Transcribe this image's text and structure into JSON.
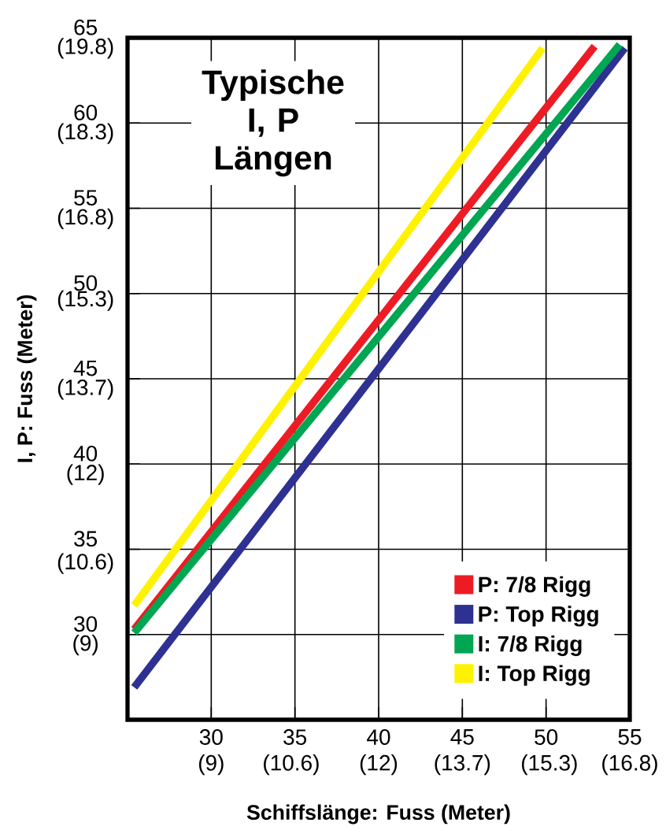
{
  "chart_data": {
    "type": "line",
    "title": "Typische I, P Längen",
    "xlabel": "Schiffslänge: Fuss (Meter)",
    "ylabel": "I, P: Fuss (Meter)",
    "xlim": [
      25,
      55
    ],
    "ylim": [
      25,
      65
    ],
    "xticks": [
      30,
      35,
      40,
      45,
      50,
      55
    ],
    "yticks": [
      30,
      35,
      40,
      45,
      50,
      55,
      60,
      65
    ],
    "x2lim": [
      7.62,
      16.764
    ],
    "x2ticks": [
      {
        "value": 9.144,
        "label": "(9)"
      },
      {
        "value": 10.6,
        "label": "(10.6)"
      },
      {
        "value": 12.192,
        "label": "(12)"
      },
      {
        "value": 13.716,
        "label": "(13.7)"
      },
      {
        "value": 15.3,
        "label": "(15.3)"
      },
      {
        "value": 16.764,
        "label": "(16.8)"
      }
    ],
    "y2lim": [
      7.62,
      19.812
    ],
    "y2ticks": [
      {
        "value": 9.144,
        "label": "(9)"
      },
      {
        "value": 10.6,
        "label": "(10.6)"
      },
      {
        "value": 12.192,
        "label": "(12)"
      },
      {
        "value": 13.716,
        "label": "(13.7)"
      },
      {
        "value": 15.3,
        "label": "(15.3)"
      },
      {
        "value": 16.764,
        "label": "(16.8)"
      },
      {
        "value": 18.288,
        "label": "(18.3)"
      },
      {
        "value": 19.812,
        "label": "(19.8)"
      }
    ],
    "grid": true,
    "legend": "bottom right",
    "marker": "none",
    "line_style": "solid",
    "series": [
      {
        "name": "P:  7/8 Rigg",
        "color": "#ed1c24",
        "x": [
          25.4,
          52.9
        ],
        "values": [
          30.3,
          64.5
        ]
      },
      {
        "name": "P:  Top Rigg",
        "color": "#2e3192",
        "x": [
          25.4,
          54.7
        ],
        "values": [
          26.9,
          64.4
        ]
      },
      {
        "name": "I:   7/8 Rigg",
        "color": "#00a651",
        "x": [
          25.4,
          54.4
        ],
        "values": [
          30.1,
          64.6
        ]
      },
      {
        "name": "I:   Top Rigg",
        "color": "#fff200",
        "x": [
          25.4,
          49.8
        ],
        "values": [
          31.7,
          64.4
        ]
      }
    ]
  }
}
